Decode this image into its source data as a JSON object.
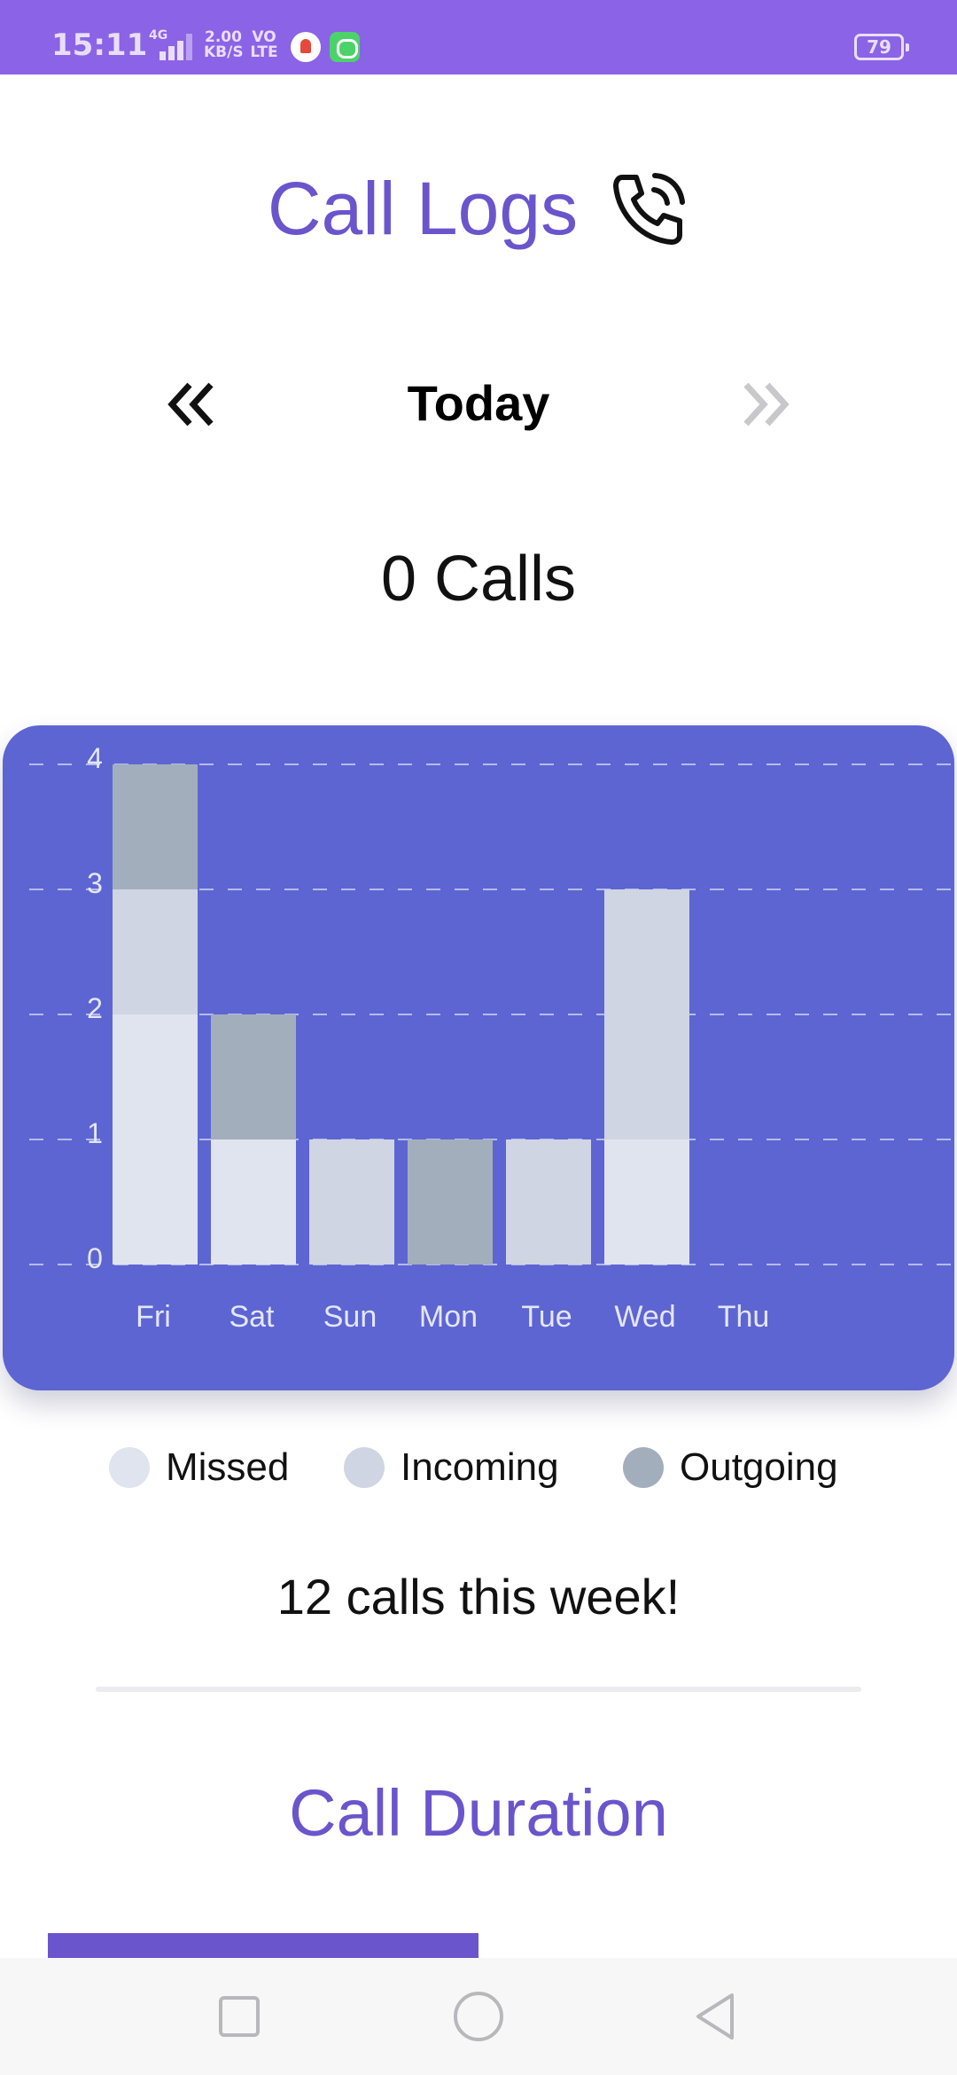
{
  "status_bar": {
    "time": "15:11",
    "network_type": "4G",
    "net_speed_value": "2.00",
    "net_speed_unit": "KB/S",
    "volte_top": "VO",
    "volte_bottom": "LTE",
    "battery_level": "79",
    "background_color": "#8b63e6"
  },
  "header": {
    "title": "Call Logs",
    "icon": "phone-ringing-icon",
    "accent_color": "#6a55cc"
  },
  "date_nav": {
    "prev_icon": "double-chevron-left-icon",
    "label": "Today",
    "next_icon": "double-chevron-right-icon",
    "next_enabled": false
  },
  "calls_count": "0 Calls",
  "chart_data": {
    "type": "bar",
    "stacked": true,
    "categories": [
      "Fri",
      "Sat",
      "Sun",
      "Mon",
      "Tue",
      "Wed",
      "Thu"
    ],
    "series": [
      {
        "name": "Missed",
        "color": "#e0e4ee",
        "values": [
          2,
          1,
          0,
          0,
          0,
          1,
          0
        ]
      },
      {
        "name": "Incoming",
        "color": "#cfd5e2",
        "values": [
          1,
          0,
          1,
          0,
          1,
          2,
          0
        ]
      },
      {
        "name": "Outgoing",
        "color": "#a3aebd",
        "values": [
          1,
          1,
          0,
          1,
          0,
          0,
          0
        ]
      }
    ],
    "yticks": [
      "0",
      "1",
      "2",
      "3",
      "4"
    ],
    "ylim": [
      0,
      4
    ],
    "grid": true,
    "background_color": "#5d65d2"
  },
  "legend": {
    "items": [
      {
        "label": "Missed",
        "color": "#e0e4ee"
      },
      {
        "label": "Incoming",
        "color": "#cfd5e2"
      },
      {
        "label": "Outgoing",
        "color": "#a3aebd"
      }
    ]
  },
  "week_summary": "12 calls this week!",
  "duration_section": {
    "title": "Call Duration"
  },
  "nav_bar": {
    "recents_icon": "square-recents-icon",
    "home_icon": "circle-home-icon",
    "back_icon": "triangle-back-icon"
  }
}
